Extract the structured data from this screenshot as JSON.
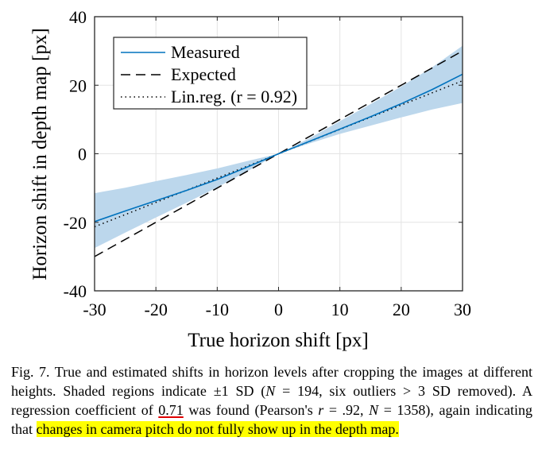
{
  "chart_data": {
    "type": "line",
    "xlabel": "True horizon shift [px]",
    "ylabel": "Horizon shift in depth map [px]",
    "xlim": [
      -30,
      30
    ],
    "ylim": [
      -40,
      40
    ],
    "xticks": [
      -30,
      -20,
      -10,
      0,
      10,
      20,
      30
    ],
    "xtick_labels": [
      "-30",
      "-20",
      "-10",
      "0",
      "10",
      "20",
      "30"
    ],
    "yticks": [
      -40,
      -20,
      0,
      20,
      40
    ],
    "ytick_labels": [
      "-40",
      "-20",
      "0",
      "20",
      "40"
    ],
    "grid": true,
    "legend_position": "top-left",
    "series": [
      {
        "name": "Measured",
        "style": "solid",
        "color": "#0072bd",
        "x": [
          -30,
          -25,
          -20,
          -15,
          -10,
          -5,
          0,
          5,
          10,
          15,
          20,
          25,
          30
        ],
        "y": [
          -19.8,
          -16.7,
          -13.7,
          -10.7,
          -7.5,
          -3.8,
          0,
          3.6,
          7.2,
          10.8,
          14.6,
          18.7,
          23.2
        ]
      },
      {
        "name": "Expected",
        "style": "dashed",
        "color": "#000000",
        "x": [
          -30,
          30
        ],
        "y": [
          -30,
          30
        ]
      },
      {
        "name": "Lin.reg. (r = 0.92)",
        "style": "dotted",
        "color": "#000000",
        "x": [
          -30,
          30
        ],
        "y": [
          -21.3,
          21.3
        ]
      }
    ],
    "band": {
      "label": "±1 SD",
      "color": "#bcd7ec",
      "x": [
        -30,
        -25,
        -20,
        -15,
        -10,
        -5,
        0,
        5,
        10,
        15,
        20,
        25,
        30
      ],
      "upper": [
        -11.5,
        -9.9,
        -8.0,
        -6.2,
        -4.3,
        -2.1,
        0,
        4.5,
        9.5,
        14.5,
        19.6,
        25.2,
        31.5
      ],
      "lower": [
        -27.5,
        -23.0,
        -18.6,
        -14.3,
        -9.8,
        -5.0,
        0,
        3.0,
        5.8,
        8.2,
        10.6,
        12.9,
        14.8
      ]
    }
  },
  "caption": {
    "p1": "Fig. 7.  True and estimated shifts in horizon levels after cropping the images at different heights. Shaded regions indicate ",
    "pm": "±1",
    "sd1": " SD (",
    "n_sym": "N",
    "n_eq": " = 194, six outliers > 3",
    "sd2": " SD removed). A regression coefficient of ",
    "coef": "0.71",
    "p2": " was found (Pearson's ",
    "r_sym": "r",
    "r_eq": " = .92, ",
    "n2_sym": "N",
    "n2_eq": " = 1358), again indicating that ",
    "highlight": "changes in camera pitch do not fully show up in the depth map."
  }
}
